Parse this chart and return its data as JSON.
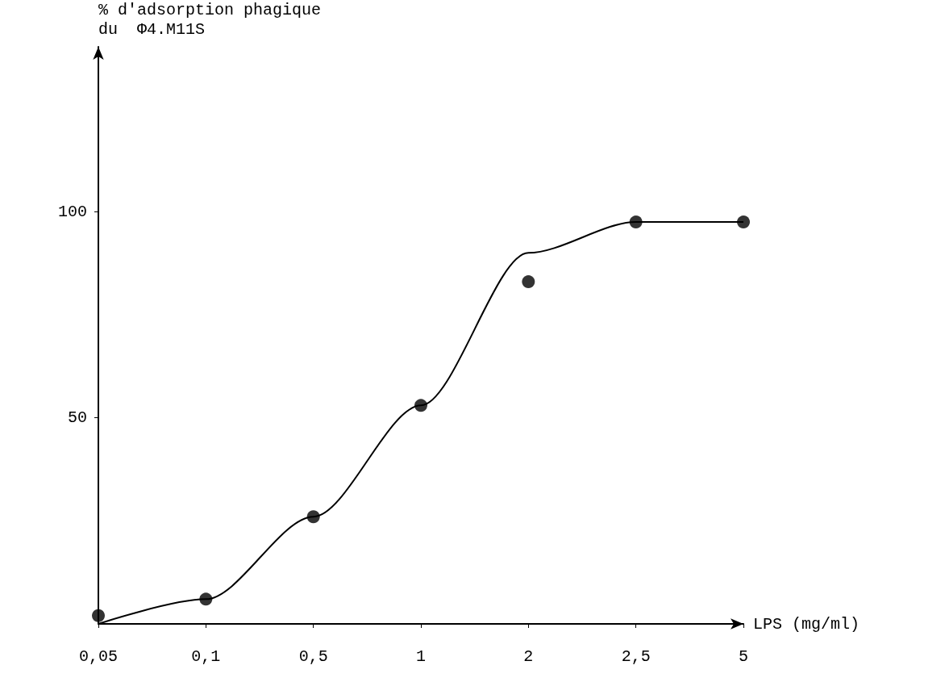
{
  "chart_data": {
    "type": "scatter",
    "ylabel": "% d'adsorption phagique\ndu  Φ4.M11S",
    "xlabel": "LPS (mg/ml)",
    "categories": [
      "0,05",
      "0,1",
      "0,5",
      "1",
      "2",
      "2,5",
      "5"
    ],
    "series": [
      {
        "color": "#000000",
        "marker": "circle",
        "values": [
          2,
          6,
          26,
          53,
          83,
          97.5,
          97.5
        ]
      },
      {
        "type": "line",
        "color": "#000000",
        "marker": "none",
        "values": [
          0,
          6,
          26,
          53,
          90,
          97.5,
          97.5
        ]
      }
    ],
    "ylim": [
      0,
      140
    ],
    "yticks": [
      50,
      100
    ],
    "grid": false
  }
}
